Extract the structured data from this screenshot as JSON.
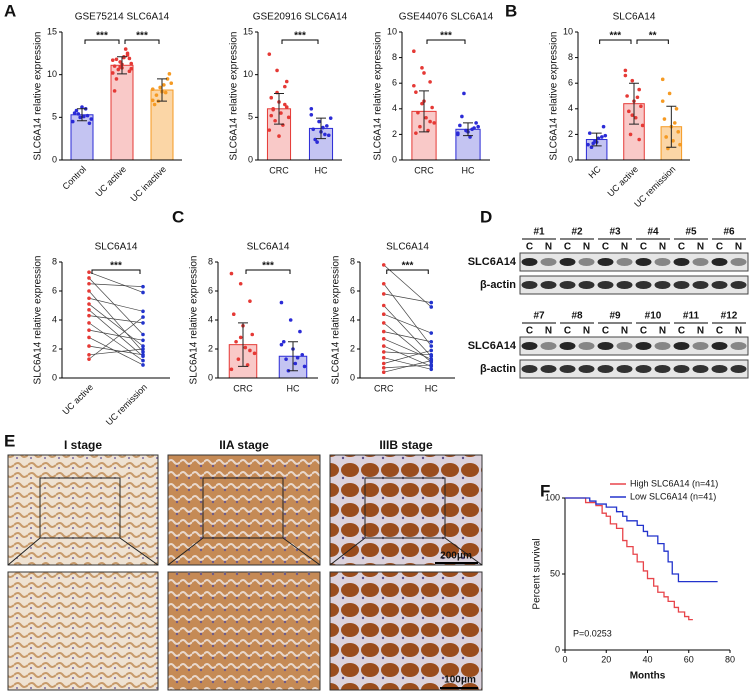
{
  "panel_letters": [
    "A",
    "B",
    "C",
    "D",
    "E",
    "F"
  ],
  "blot": {
    "samples": [
      "#1",
      "#2",
      "#3",
      "#4",
      "#5",
      "#6",
      "#7",
      "#8",
      "#9",
      "#10",
      "#11",
      "#12"
    ],
    "lanes": [
      "C",
      "N"
    ],
    "proteins": [
      "SLC6A14",
      "β-actin"
    ]
  },
  "ihc": {
    "stages": [
      "I stage",
      "IIA stage",
      "IIIB stage"
    ],
    "scale_bars": [
      "200μm",
      "100μm"
    ]
  },
  "chart_data": [
    {
      "type": "bar",
      "title": "GSE75214 SLC6A14",
      "ylabel": "SLC6A14 relative expression",
      "categories": [
        "Control",
        "UC active",
        "UC inactive"
      ],
      "values": [
        5.3,
        11.1,
        8.2
      ],
      "errors": [
        0.7,
        1.0,
        1.3
      ],
      "points": [
        [
          4.5,
          5.0,
          5.2,
          5.5,
          6.2,
          4.3,
          5.8,
          5.1,
          4.8,
          5.4,
          6.0
        ],
        [
          10.2,
          11.5,
          12.3,
          11.0,
          10.8,
          11.9,
          9.5,
          12.0,
          11.3,
          10.6,
          13.0,
          11.7,
          10.9,
          12.5,
          8.1,
          11.2,
          10.4,
          11.8,
          12.1,
          10.7
        ],
        [
          7.0,
          8.5,
          9.5,
          6.5,
          8.0,
          10.1,
          7.6,
          8.8,
          9.0,
          6.9,
          7.9,
          8.3
        ]
      ],
      "colors": [
        "#2b2bd6",
        "#e53935",
        "#f59a23"
      ],
      "fills": [
        "#c4c4f2",
        "#f9c9c8",
        "#fbd6a6"
      ],
      "ylim": [
        0,
        15
      ],
      "yticks": [
        0,
        5,
        10,
        15
      ],
      "significance": [
        {
          "pair": [
            0,
            1
          ],
          "label": "***"
        },
        {
          "pair": [
            1,
            2
          ],
          "label": "***"
        }
      ]
    },
    {
      "type": "bar",
      "title": "GSE20916 SLC6A14",
      "ylabel": "SLC6A14 relative expression",
      "categories": [
        "CRC",
        "HC"
      ],
      "values": [
        6.0,
        3.7
      ],
      "errors": [
        1.8,
        1.2
      ],
      "points": [
        [
          12.4,
          10.5,
          8.6,
          7.3,
          6.8,
          6.2,
          5.9,
          5.5,
          5.0,
          4.6,
          4.1,
          3.5,
          7.9,
          6.5,
          5.2,
          2.8,
          9.2,
          6.0
        ],
        [
          5.3,
          4.5,
          4.0,
          3.6,
          3.3,
          2.9,
          2.4,
          3.8,
          4.9,
          2.1,
          3.0,
          6.0
        ]
      ],
      "colors": [
        "#e53935",
        "#2b2bd6"
      ],
      "fills": [
        "#f9c9c8",
        "#c4c4f2"
      ],
      "ylim": [
        0,
        15
      ],
      "yticks": [
        0,
        5,
        10,
        15
      ],
      "significance": [
        {
          "pair": [
            0,
            1
          ],
          "label": "***"
        }
      ]
    },
    {
      "type": "bar",
      "title": "GSE44076 SLC6A14",
      "ylabel": "SLC6A14 relative expression",
      "categories": [
        "CRC",
        "HC"
      ],
      "values": [
        3.8,
        2.4
      ],
      "errors": [
        1.6,
        0.5
      ],
      "points": [
        [
          8.5,
          7.2,
          6.1,
          5.3,
          4.6,
          4.1,
          3.7,
          3.3,
          2.9,
          2.6,
          2.3,
          5.8,
          4.4,
          3.0,
          2.1,
          6.8
        ],
        [
          2.1,
          2.3,
          2.5,
          2.7,
          2.2,
          2.9,
          3.4,
          1.8,
          2.6,
          5.2,
          2.4,
          2.0
        ]
      ],
      "colors": [
        "#e53935",
        "#2b2bd6"
      ],
      "fills": [
        "#f9c9c8",
        "#c4c4f2"
      ],
      "ylim": [
        0,
        10
      ],
      "yticks": [
        0,
        2,
        4,
        6,
        8,
        10
      ],
      "significance": [
        {
          "pair": [
            0,
            1
          ],
          "label": "***"
        }
      ]
    },
    {
      "type": "bar",
      "title": "SLC6A14",
      "ylabel": "SLC6A14 relative expression",
      "categories": [
        "HC",
        "UC active",
        "UC remission"
      ],
      "values": [
        1.6,
        4.4,
        2.6
      ],
      "errors": [
        0.5,
        1.6,
        1.6
      ],
      "points": [
        [
          1.2,
          1.5,
          1.8,
          2.1,
          1.4,
          2.6,
          1.0,
          1.7,
          1.9,
          1.3
        ],
        [
          7.0,
          6.2,
          5.5,
          5.0,
          4.6,
          4.2,
          3.8,
          3.3,
          2.7,
          2.0,
          4.9,
          6.6,
          3.5,
          1.6
        ],
        [
          6.3,
          5.2,
          4.0,
          3.2,
          2.6,
          2.2,
          1.8,
          1.5,
          1.2,
          0.9,
          2.9,
          4.6
        ]
      ],
      "colors": [
        "#2b2bd6",
        "#e53935",
        "#f59a23"
      ],
      "fills": [
        "#c4c4f2",
        "#f9c9c8",
        "#fbd6a6"
      ],
      "ylim": [
        0,
        10
      ],
      "yticks": [
        0,
        2,
        4,
        6,
        8,
        10
      ],
      "significance": [
        {
          "pair": [
            0,
            1
          ],
          "label": "***"
        },
        {
          "pair": [
            1,
            2
          ],
          "label": "**"
        }
      ]
    },
    {
      "type": "paired",
      "title": "SLC6A14",
      "ylabel": "SLC6A14 relative expression",
      "categories": [
        "UC active",
        "UC remission"
      ],
      "pairs": [
        [
          7.3,
          5.9
        ],
        [
          6.9,
          3.0
        ],
        [
          6.5,
          6.3
        ],
        [
          6.0,
          1.8
        ],
        [
          5.5,
          4.6
        ],
        [
          5.1,
          2.2
        ],
        [
          4.7,
          1.5
        ],
        [
          4.3,
          3.8
        ],
        [
          3.8,
          1.2
        ],
        [
          3.3,
          2.6
        ],
        [
          2.8,
          0.9
        ],
        [
          2.2,
          1.6
        ],
        [
          1.6,
          2.0
        ],
        [
          1.3,
          4.2
        ]
      ],
      "colors": [
        "#e53935",
        "#2233cc"
      ],
      "ylim": [
        0,
        8
      ],
      "yticks": [
        0,
        2,
        4,
        6,
        8
      ],
      "significance": [
        {
          "pair": [
            0,
            1
          ],
          "label": "***"
        }
      ]
    },
    {
      "type": "bar",
      "title": "SLC6A14",
      "ylabel": "SLC6A14 relative expression",
      "categories": [
        "CRC",
        "HC"
      ],
      "values": [
        2.3,
        1.5
      ],
      "errors": [
        1.5,
        1.0
      ],
      "points": [
        [
          7.2,
          6.5,
          5.3,
          4.4,
          3.6,
          3.0,
          2.5,
          2.1,
          1.7,
          1.3,
          0.9,
          0.6,
          2.8,
          1.9
        ],
        [
          5.2,
          4.0,
          3.2,
          2.5,
          2.0,
          1.6,
          1.3,
          1.0,
          0.8,
          0.5,
          1.4,
          2.3
        ]
      ],
      "colors": [
        "#e53935",
        "#2b2bd6"
      ],
      "fills": [
        "#f9c9c8",
        "#c4c4f2"
      ],
      "ylim": [
        0,
        8
      ],
      "yticks": [
        0,
        2,
        4,
        6,
        8
      ],
      "significance": [
        {
          "pair": [
            0,
            1
          ],
          "label": "***"
        }
      ]
    },
    {
      "type": "paired",
      "title": "SLC6A14",
      "ylabel": "SLC6A14 relative expression",
      "categories": [
        "CRC",
        "HC"
      ],
      "pairs": [
        [
          7.8,
          4.9
        ],
        [
          6.5,
          2.2
        ],
        [
          5.8,
          5.2
        ],
        [
          5.0,
          1.5
        ],
        [
          4.4,
          3.1
        ],
        [
          3.8,
          1.1
        ],
        [
          3.2,
          2.5
        ],
        [
          2.7,
          1.3
        ],
        [
          2.2,
          0.8
        ],
        [
          1.8,
          1.6
        ],
        [
          1.4,
          0.6
        ],
        [
          1.0,
          1.9
        ],
        [
          0.7,
          0.9
        ],
        [
          0.4,
          1.2
        ]
      ],
      "colors": [
        "#e53935",
        "#2233cc"
      ],
      "ylim": [
        0,
        8
      ],
      "yticks": [
        0,
        2,
        4,
        6,
        8
      ],
      "significance": [
        {
          "pair": [
            0,
            1
          ],
          "label": "***"
        }
      ]
    },
    {
      "type": "step",
      "xlabel": "Months",
      "ylabel": "Percent survival",
      "annotation": "P=0.0253",
      "xlim": [
        0,
        80
      ],
      "xticks": [
        0,
        20,
        40,
        60,
        80
      ],
      "ylim": [
        0,
        100
      ],
      "yticks": [
        0,
        50,
        100
      ],
      "legend": "top-right",
      "series": [
        {
          "name": "High SLC6A14 (n=41)",
          "color": "#e8444a",
          "x": [
            0,
            5,
            10,
            15,
            18,
            20,
            22,
            25,
            28,
            30,
            33,
            35,
            38,
            40,
            43,
            45,
            48,
            50,
            53,
            55,
            58,
            60,
            62
          ],
          "values": [
            100,
            100,
            97,
            95,
            90,
            88,
            83,
            80,
            72,
            68,
            63,
            58,
            52,
            47,
            42,
            38,
            35,
            32,
            28,
            25,
            22,
            20,
            20
          ]
        },
        {
          "name": "Low SLC6A14 (n=41)",
          "color": "#2233cc",
          "x": [
            0,
            8,
            12,
            15,
            20,
            25,
            28,
            30,
            35,
            38,
            40,
            45,
            48,
            50,
            52,
            55,
            60,
            65,
            70,
            74
          ],
          "values": [
            100,
            100,
            98,
            96,
            94,
            91,
            88,
            85,
            82,
            78,
            75,
            70,
            65,
            58,
            50,
            45,
            45,
            45,
            45,
            45
          ]
        }
      ]
    }
  ]
}
